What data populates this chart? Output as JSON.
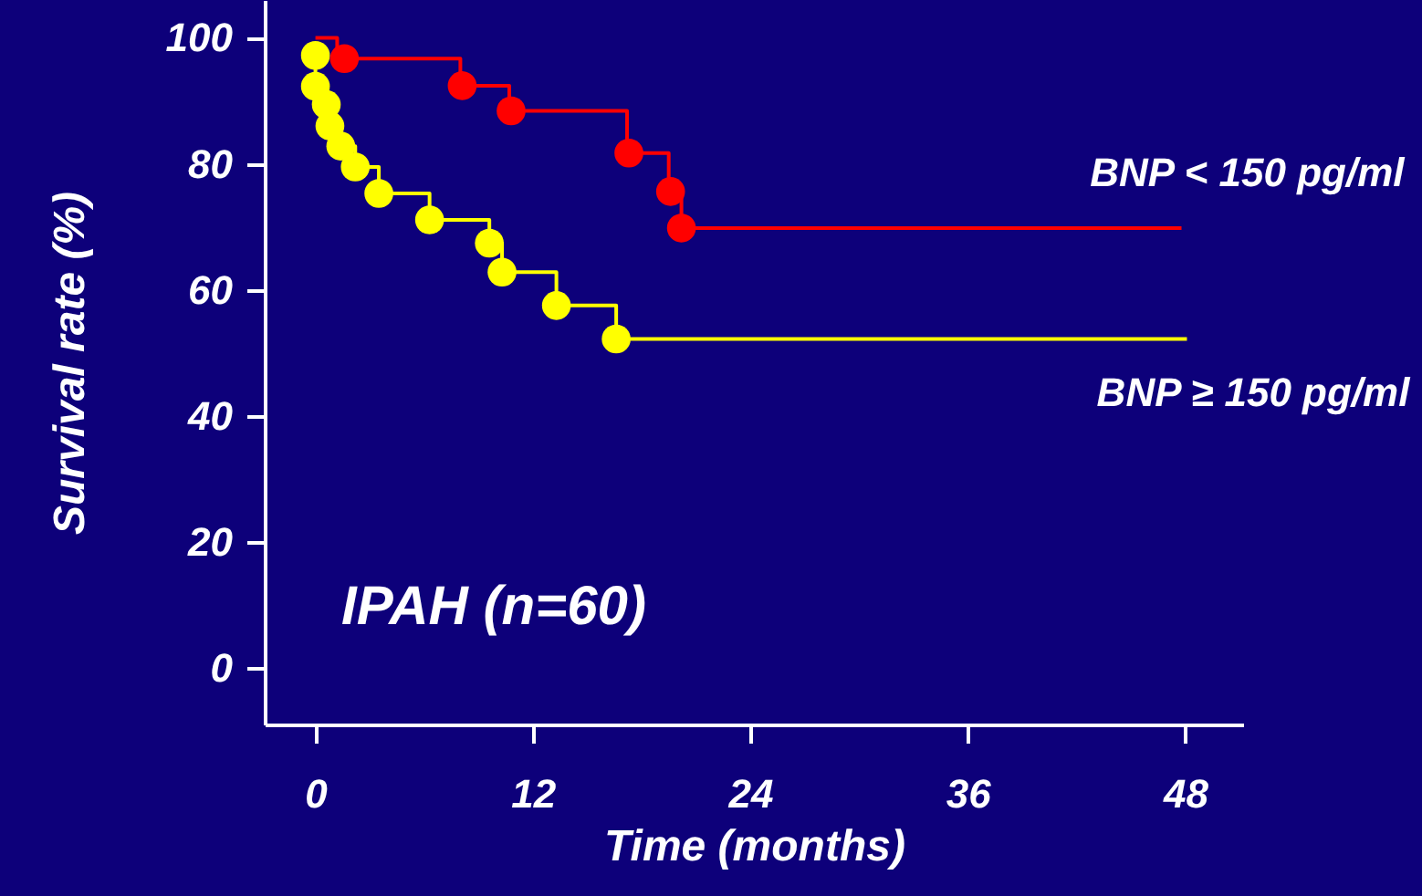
{
  "chart_data": {
    "type": "step",
    "xlabel": "Time (months)",
    "ylabel": "Survival rate (%)",
    "xlim": [
      -2.8,
      51.2
    ],
    "ylim": [
      -9,
      106
    ],
    "xticks": [
      0,
      12,
      24,
      36,
      48
    ],
    "yticks": [
      0,
      20,
      40,
      60,
      80,
      100
    ],
    "grid": false,
    "marker": "none",
    "line_style": "solid",
    "annotations": [
      "IPAH (n=60)"
    ],
    "series": [
      {
        "name": "BNP < 150 pg/ml",
        "color": "#ff0000",
        "x": [
          0,
          1.2,
          8.0,
          10.7,
          17.2,
          19.5,
          20.2,
          47.8
        ],
        "values": [
          100,
          96.7,
          92.4,
          88.4,
          81.7,
          75.6,
          69.8,
          69.8
        ]
      },
      {
        "type": "scatter",
        "marker": "circle",
        "color": "#ff0000",
        "x": [
          1.6,
          8.1,
          10.8,
          17.3,
          19.6,
          20.2
        ],
        "values": [
          96.7,
          92.4,
          88.4,
          81.7,
          75.6,
          69.8
        ]
      },
      {
        "name": "BNP ≥ 150 pg/ml",
        "color": "#ffff00",
        "x": [
          0,
          0,
          0.6,
          0.8,
          1.4,
          2.2,
          3.5,
          6.3,
          9.6,
          10.3,
          13.3,
          16.6,
          48.1
        ],
        "values": [
          97.2,
          92.3,
          89.4,
          86.0,
          82.8,
          79.5,
          75.3,
          71.1,
          67.4,
          62.8,
          57.5,
          52.2,
          52.2
        ]
      },
      {
        "type": "scatter",
        "marker": "circle",
        "color": "#ffff00",
        "x": [
          0,
          0,
          0.6,
          0.8,
          1.4,
          2.2,
          3.5,
          6.3,
          9.6,
          10.3,
          13.3,
          16.6
        ],
        "values": [
          97.2,
          92.3,
          89.4,
          86.0,
          82.8,
          79.5,
          75.3,
          71.1,
          67.4,
          62.8,
          57.5,
          52.2
        ]
      }
    ]
  }
}
